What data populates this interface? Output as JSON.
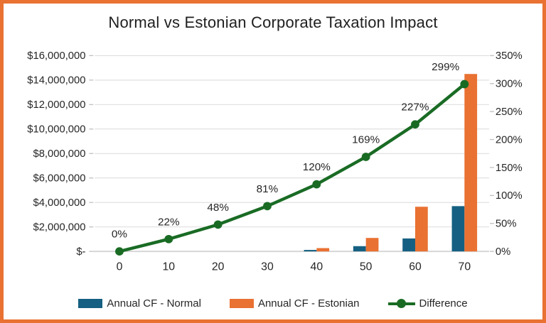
{
  "chart_data": {
    "type": "combo-bar-line",
    "title": "Normal vs Estonian Corporate Taxation Impact",
    "categories": [
      "0",
      "10",
      "20",
      "30",
      "40",
      "50",
      "60",
      "70"
    ],
    "bar_series": [
      {
        "name": "Annual CF - Normal",
        "color": "#156082",
        "axis": "left",
        "values": [
          0,
          0,
          0,
          0,
          120000,
          430000,
          1060000,
          3700000
        ]
      },
      {
        "name": "Annual CF - Estonian",
        "color": "#E97132",
        "axis": "left",
        "values": [
          0,
          0,
          0,
          0,
          270000,
          1100000,
          3650000,
          14500000
        ]
      }
    ],
    "line_series": {
      "name": "Difference",
      "color": "#196B24",
      "axis": "right",
      "values_percent": [
        0,
        22,
        48,
        81,
        120,
        169,
        227,
        299
      ],
      "data_labels": [
        "0%",
        "22%",
        "48%",
        "81%",
        "120%",
        "169%",
        "227%",
        "299%"
      ]
    },
    "left_axis": {
      "min": 0,
      "max": 16000000,
      "ticks": [
        "$-",
        "$2,000,000",
        "$4,000,000",
        "$6,000,000",
        "$8,000,000",
        "$10,000,000",
        "$12,000,000",
        "$14,000,000",
        "$16,000,000"
      ]
    },
    "right_axis": {
      "min": 0,
      "max": 350,
      "ticks": [
        "0%",
        "50%",
        "100%",
        "150%",
        "200%",
        "250%",
        "300%",
        "350%"
      ]
    },
    "gridlines": "horizontal",
    "legend_position": "bottom"
  },
  "style": {
    "frame_border_color": "#E97132",
    "gridline_color": "#D9D9D9",
    "axis_line_color": "#D6D6D6",
    "tick_color": "#BFBFBF",
    "text_color": "#262626",
    "background": "#FFFFFF"
  }
}
